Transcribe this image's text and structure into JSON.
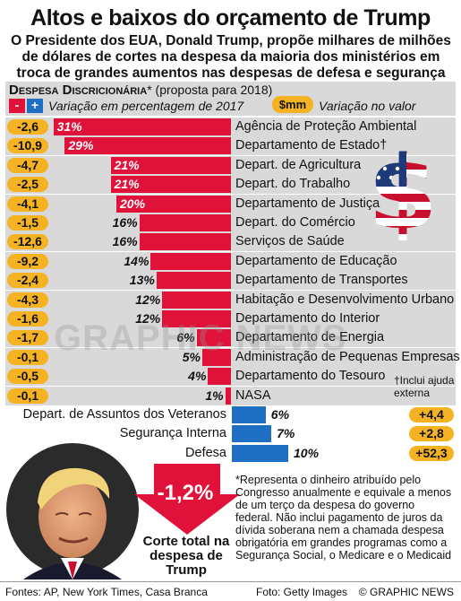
{
  "header": {
    "title": "Altos e baixos do orçamento de Trump",
    "subtitle": "O Presidente dos EUA, Donald Trump, propõe milhares de milhões de dólares de cortes na despesa da maioria dos ministérios em troca de grandes aumentos nas despesas de defesa e segurança interna"
  },
  "legend": {
    "section_title": "Despesa Discricionária",
    "section_asterisk": "*",
    "section_sub": "(proposta para 2018)",
    "minus_symbol": "-",
    "plus_symbol": "+",
    "pct_note": "Variação em percentagem de 2017",
    "mm_symbol": "$mm",
    "mm_note": "Variação no valor"
  },
  "chart_data": {
    "type": "bar",
    "orientation": "horizontal",
    "title": "Despesa Discricionária* (proposta para 2018)",
    "cuts": [
      {
        "department": "Agência de Proteção Ambiental",
        "pct": 31,
        "change_mm": "-2,6"
      },
      {
        "department": "Departamento de Estado",
        "dagger": "†",
        "pct": 29,
        "change_mm": "-10,9"
      },
      {
        "department": "Depart. de Agricultura",
        "pct": 21,
        "change_mm": "-4,7"
      },
      {
        "department": "Depart. do Trabalho",
        "pct": 21,
        "change_mm": "-2,5"
      },
      {
        "department": "Departamento de Justiça",
        "pct": 20,
        "change_mm": "-4,1"
      },
      {
        "department": "Depart. do Comércio",
        "pct": 16,
        "change_mm": "-1,5"
      },
      {
        "department": "Serviços de Saúde",
        "pct": 16,
        "change_mm": "-12,6"
      },
      {
        "department": "Departamento de Educação",
        "pct": 14,
        "change_mm": "-9,2"
      },
      {
        "department": "Departamento de Transportes",
        "pct": 13,
        "change_mm": "-2,4"
      },
      {
        "department": "Habitação e Desenvolvimento Urbano",
        "pct": 12,
        "change_mm": "-4,3"
      },
      {
        "department": "Departamento do Interior",
        "pct": 12,
        "change_mm": "-1,6"
      },
      {
        "department": "Departamento de Energia",
        "pct": 6,
        "change_mm": "-1,7"
      },
      {
        "department": "Administração de Pequenas Empresas",
        "pct": 5,
        "change_mm": "-0,1"
      },
      {
        "department": "Departamento do Tesouro",
        "pct": 4,
        "change_mm": "-0,5"
      },
      {
        "department": "NASA",
        "pct": 1,
        "change_mm": "-0,1"
      }
    ],
    "increases": [
      {
        "department": "Depart. de Assuntos dos Veteranos",
        "pct": 6,
        "change_mm": "+4,4"
      },
      {
        "department": "Segurança Interna",
        "pct": 7,
        "change_mm": "+2,8"
      },
      {
        "department": "Defesa",
        "pct": 10,
        "change_mm": "+52,3"
      }
    ],
    "pct_suffix": "%",
    "colors": {
      "cut": "#e0123a",
      "increase": "#1e6fc3",
      "chip": "#f5b324",
      "band": "#d9d9d9"
    }
  },
  "notes": {
    "dagger_note": "†Inclui ajuda externa",
    "footnote": "*Representa o dinheiro atribuído pelo Congresso anualmente e equivale a menos de um terço da despesa do governo federal. Não inclui pagamento de juros da dívida soberana nem a chamada despesa obrigatória em grandes programas como a Segurança Social, o Medicare e o Medicaid"
  },
  "total": {
    "value": "-1,2%",
    "label": "Corte total na despesa de Trump"
  },
  "footer": {
    "sources": "Fontes: AP, New York Times, Casa Branca",
    "photo_credit": "Foto: Getty Images",
    "brand": "© GRAPHIC NEWS"
  },
  "watermark": "GRAPHIC NEWS",
  "icons": [
    "dollar-flag-icon",
    "trump-portrait",
    "down-arrow-icon"
  ]
}
